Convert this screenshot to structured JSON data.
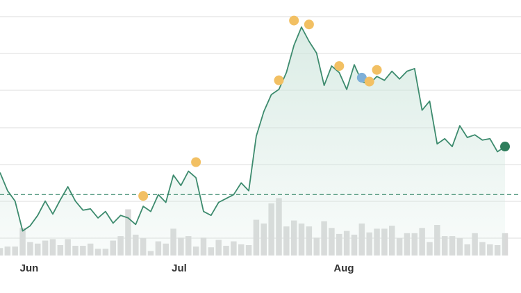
{
  "chart_data": {
    "type": "line",
    "x_tick_labels": [
      "Jun",
      "Jul",
      "Aug"
    ],
    "grid": "horizontal",
    "reference_line": {
      "value": 0.33,
      "style": "dashed"
    },
    "price_series": {
      "values": [
        0.5,
        0.36,
        0.28,
        0.05,
        0.09,
        0.17,
        0.28,
        0.18,
        0.29,
        0.39,
        0.28,
        0.21,
        0.22,
        0.15,
        0.2,
        0.11,
        0.17,
        0.15,
        0.1,
        0.24,
        0.2,
        0.33,
        0.27,
        0.48,
        0.4,
        0.51,
        0.46,
        0.2,
        0.17,
        0.27,
        0.3,
        0.33,
        0.42,
        0.36,
        0.78,
        0.97,
        1.1,
        1.14,
        1.27,
        1.48,
        1.62,
        1.51,
        1.42,
        1.17,
        1.32,
        1.27,
        1.14,
        1.33,
        1.2,
        1.18,
        1.24,
        1.21,
        1.28,
        1.22,
        1.28,
        1.3,
        0.98,
        1.05,
        0.72,
        0.76,
        0.7,
        0.86,
        0.77,
        0.79,
        0.75,
        0.76,
        0.66,
        0.7
      ]
    },
    "volume_series": {
      "values": [
        0.1,
        0.12,
        0.12,
        0.37,
        0.18,
        0.16,
        0.2,
        0.22,
        0.14,
        0.22,
        0.13,
        0.13,
        0.16,
        0.09,
        0.09,
        0.2,
        0.26,
        0.62,
        0.28,
        0.23,
        0.06,
        0.19,
        0.16,
        0.36,
        0.24,
        0.26,
        0.12,
        0.24,
        0.11,
        0.21,
        0.13,
        0.19,
        0.15,
        0.14,
        0.48,
        0.43,
        0.7,
        0.77,
        0.39,
        0.47,
        0.43,
        0.39,
        0.24,
        0.46,
        0.37,
        0.29,
        0.33,
        0.28,
        0.43,
        0.31,
        0.36,
        0.36,
        0.4,
        0.23,
        0.3,
        0.3,
        0.37,
        0.18,
        0.41,
        0.26,
        0.26,
        0.23,
        0.15,
        0.3,
        0.18,
        0.15,
        0.14,
        0.3
      ]
    },
    "markers": [
      {
        "index": 19,
        "value": 0.32,
        "color": "#F2C063"
      },
      {
        "index": 26,
        "value": 0.58,
        "color": "#F2C063"
      },
      {
        "index": 37,
        "value": 1.21,
        "color": "#F2C063"
      },
      {
        "index": 39,
        "value": 1.67,
        "color": "#F2C063"
      },
      {
        "index": 41,
        "value": 1.64,
        "color": "#F2C063"
      },
      {
        "index": 45,
        "value": 1.32,
        "color": "#F2C063"
      },
      {
        "index": 48,
        "value": 1.23,
        "color": "#7EAFD8"
      },
      {
        "index": 49,
        "value": 1.2,
        "color": "#F2C063"
      },
      {
        "index": 50,
        "value": 1.29,
        "color": "#F2C063"
      },
      {
        "index": 67,
        "value": 0.7,
        "color": "#2E7D5B"
      }
    ],
    "colors": {
      "line": "#3D8B6E",
      "area_top": "#CFE6DD",
      "volume": "#D9D9D9",
      "grid": "#DDDDDD",
      "reference": "#3D8B6E"
    }
  }
}
